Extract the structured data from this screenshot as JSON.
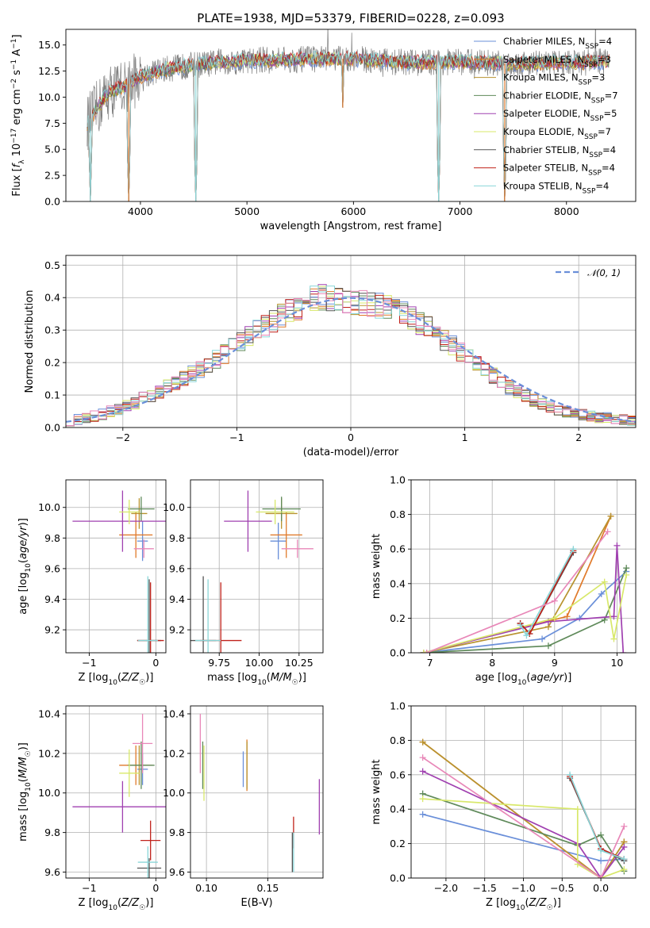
{
  "figure_title": "PLATE=1938, MJD=53379, FIBERID=0228, z=0.093",
  "model_colors": [
    "#6a8fd9",
    "#e07a2a",
    "#b8932f",
    "#5f8a5a",
    "#a040b0",
    "#d8e86a",
    "#555555",
    "#c0221a",
    "#8ad6d8"
  ],
  "pink_color": "#e887b8",
  "chart_data": [
    {
      "id": "spectrum",
      "type": "line",
      "title": "PLATE=1938, MJD=53379, FIBERID=0228, z=0.093",
      "xlabel": "wavelength [Angstrom, rest frame]",
      "ylabel": "Flux [f_λ 10^-17 erg cm^-2 s^-1 A^-1]",
      "xlim": [
        3300,
        8650
      ],
      "ylim": [
        0,
        16.5
      ],
      "xticks": [
        4000,
        5000,
        6000,
        7000,
        8000
      ],
      "yticks": [
        0.0,
        2.5,
        5.0,
        7.5,
        10.0,
        12.5,
        15.0
      ],
      "legend_position": "right",
      "legend": [
        {
          "text": "Chabrier MILES, N",
          "sub": "SSP",
          "tail": "=4",
          "color": "#6a8fd9"
        },
        {
          "text": "Salpeter MILES, N",
          "sub": "SSP",
          "tail": "=3",
          "color": "#e07a2a"
        },
        {
          "text": "Kroupa MILES, N",
          "sub": "SSP",
          "tail": "=3",
          "color": "#b8932f"
        },
        {
          "text": "Chabrier ELODIE, N",
          "sub": "SSP",
          "tail": "=7",
          "color": "#5f8a5a"
        },
        {
          "text": "Salpeter ELODIE, N",
          "sub": "SSP",
          "tail": "=5",
          "color": "#a040b0"
        },
        {
          "text": "Kroupa ELODIE, N",
          "sub": "SSP",
          "tail": "=7",
          "color": "#d8e86a"
        },
        {
          "text": "Chabrier STELIB, N",
          "sub": "SSP",
          "tail": "=4",
          "color": "#555555"
        },
        {
          "text": "Salpeter STELIB, N",
          "sub": "SSP",
          "tail": "=4",
          "color": "#c0221a"
        },
        {
          "text": "Kroupa STELIB, N",
          "sub": "SSP",
          "tail": "=4",
          "color": "#8ad6d8"
        }
      ],
      "continuum": [
        [
          3500,
          7.5
        ],
        [
          3700,
          10.5
        ],
        [
          3850,
          11.0
        ],
        [
          4000,
          12.0
        ],
        [
          4200,
          12.6
        ],
        [
          4500,
          13.1
        ],
        [
          5000,
          13.5
        ],
        [
          5500,
          13.6
        ],
        [
          6000,
          13.7
        ],
        [
          6500,
          13.3
        ],
        [
          7000,
          13.4
        ],
        [
          7500,
          13.2
        ],
        [
          8000,
          13.3
        ],
        [
          8400,
          13.4
        ]
      ],
      "absorption_lines": [
        {
          "x": 3530,
          "depth": 0
        },
        {
          "x": 3890,
          "depth": 0
        },
        {
          "x": 4520,
          "depth": 0
        },
        {
          "x": 5900,
          "depth": 9.0
        },
        {
          "x": 6800,
          "depth": 0
        },
        {
          "x": 7420,
          "depth": 0
        }
      ]
    },
    {
      "id": "residuals",
      "type": "histogram",
      "xlabel": "(data-model)/error",
      "ylabel": "Normed distribution",
      "xlim": [
        -2.5,
        2.5
      ],
      "ylim": [
        0,
        0.53
      ],
      "xticks": [
        -2,
        -1,
        0,
        1,
        2
      ],
      "yticks": [
        0.0,
        0.1,
        0.2,
        0.3,
        0.4,
        0.5
      ],
      "legend_position": "top-right",
      "legend": [
        {
          "text": "𝒩(0, 1)",
          "color": "#6a8fd9"
        }
      ],
      "bin_width": 0.1,
      "envelope_y": [
        0.02,
        0.025,
        0.03,
        0.035,
        0.04,
        0.05,
        0.055,
        0.065,
        0.075,
        0.09,
        0.1,
        0.11,
        0.125,
        0.14,
        0.15,
        0.165,
        0.18,
        0.19,
        0.21,
        0.225,
        0.245,
        0.26,
        0.28,
        0.3,
        0.31,
        0.33,
        0.345,
        0.36,
        0.37,
        0.385,
        0.395,
        0.4,
        0.395,
        0.39,
        0.39,
        0.385,
        0.385,
        0.38,
        0.375,
        0.37,
        0.36,
        0.35,
        0.34,
        0.32,
        0.31,
        0.29,
        0.27,
        0.255,
        0.235,
        0.215,
        0.195,
        0.175,
        0.16,
        0.14,
        0.125,
        0.11,
        0.095,
        0.085,
        0.075,
        0.065,
        0.055,
        0.05,
        0.045,
        0.04,
        0.035,
        0.03,
        0.03,
        0.025,
        0.025,
        0.02
      ]
    },
    {
      "id": "age-vs-Z",
      "type": "errorbar",
      "xlabel": "Z [log10(Z/Z☉)]",
      "ylabel": "age  [log10(age/yr)]",
      "xlim": [
        -1.35,
        0.15
      ],
      "ylim": [
        9.05,
        10.18
      ],
      "xticks": [
        -1,
        0
      ],
      "yticks": [
        9.2,
        9.4,
        9.6,
        9.8,
        10.0
      ],
      "points": [
        {
          "x": -0.2,
          "xerr": 0.08,
          "y": 9.78,
          "yerr": 0.13,
          "color": "#6a8fd9"
        },
        {
          "x": -0.3,
          "xerr": 0.25,
          "y": 9.82,
          "yerr": 0.15,
          "color": "#e07a2a"
        },
        {
          "x": -0.25,
          "xerr": 0.12,
          "y": 9.96,
          "yerr": 0.1,
          "color": "#b8932f"
        },
        {
          "x": -0.22,
          "xerr": 0.2,
          "y": 9.99,
          "yerr": 0.08,
          "color": "#5f8a5a"
        },
        {
          "x": -0.5,
          "xerr": 0.75,
          "y": 9.91,
          "yerr": 0.2,
          "color": "#a040b0"
        },
        {
          "x": -0.4,
          "xerr": 0.15,
          "y": 9.97,
          "yerr": 0.08,
          "color": "#d8e86a"
        },
        {
          "x": -0.1,
          "xerr": 0.18,
          "y": 9.13,
          "yerr": 0.4,
          "color": "#555555"
        },
        {
          "x": -0.08,
          "xerr": 0.2,
          "y": 9.13,
          "yerr": 0.38,
          "color": "#c0221a"
        },
        {
          "x": -0.12,
          "xerr": 0.15,
          "y": 9.13,
          "yerr": 0.42,
          "color": "#8ad6d8"
        },
        {
          "x": -0.18,
          "xerr": 0.15,
          "y": 9.73,
          "yerr": 0.06,
          "color": "#e887b8"
        }
      ]
    },
    {
      "id": "age-vs-mass",
      "type": "errorbar",
      "xlabel": "mass [log10(M/M☉)]",
      "ylabel": "",
      "xlim": [
        9.57,
        10.4
      ],
      "ylim": [
        9.05,
        10.18
      ],
      "xticks": [
        9.75,
        10.0,
        10.25
      ],
      "yticks": [
        9.2,
        9.4,
        9.6,
        9.8,
        10.0
      ],
      "points": [
        {
          "x": 10.12,
          "xerr": 0.05,
          "y": 9.78,
          "yerr": 0.12,
          "color": "#6a8fd9"
        },
        {
          "x": 10.17,
          "xerr": 0.1,
          "y": 9.82,
          "yerr": 0.15,
          "color": "#e07a2a"
        },
        {
          "x": 10.14,
          "xerr": 0.1,
          "y": 9.96,
          "yerr": 0.1,
          "color": "#b8932f"
        },
        {
          "x": 10.14,
          "xerr": 0.12,
          "y": 9.99,
          "yerr": 0.08,
          "color": "#5f8a5a"
        },
        {
          "x": 9.93,
          "xerr": 0.15,
          "y": 9.91,
          "yerr": 0.2,
          "color": "#a040b0"
        },
        {
          "x": 10.1,
          "xerr": 0.12,
          "y": 9.97,
          "yerr": 0.08,
          "color": "#d8e86a"
        },
        {
          "x": 9.65,
          "xerr": 0.08,
          "y": 9.13,
          "yerr": 0.42,
          "color": "#555555"
        },
        {
          "x": 9.76,
          "xerr": 0.13,
          "y": 9.13,
          "yerr": 0.38,
          "color": "#c0221a"
        },
        {
          "x": 9.68,
          "xerr": 0.08,
          "y": 9.13,
          "yerr": 0.4,
          "color": "#8ad6d8"
        },
        {
          "x": 10.24,
          "xerr": 0.1,
          "y": 9.73,
          "yerr": 0.06,
          "color": "#e887b8"
        }
      ]
    },
    {
      "id": "weight-vs-age",
      "type": "line",
      "xlabel": "age  [log10(age/yr)]",
      "ylabel": "mass weight",
      "xlim": [
        6.7,
        10.3
      ],
      "ylim": [
        0,
        1.0
      ],
      "xticks": [
        7,
        8,
        9,
        10
      ],
      "yticks": [
        0.0,
        0.2,
        0.4,
        0.6,
        0.8,
        1.0
      ],
      "series": [
        {
          "color": "#6a8fd9",
          "points": [
            [
              6.9,
              0.0
            ],
            [
              8.8,
              0.08
            ],
            [
              9.4,
              0.2
            ],
            [
              9.75,
              0.34
            ],
            [
              10.15,
              0.47
            ]
          ]
        },
        {
          "color": "#e07a2a",
          "points": [
            [
              6.9,
              0.0
            ],
            [
              9.2,
              0.21
            ],
            [
              9.9,
              0.79
            ]
          ]
        },
        {
          "color": "#b8932f",
          "points": [
            [
              6.9,
              0.0
            ],
            [
              8.9,
              0.15
            ],
            [
              9.9,
              0.79
            ]
          ]
        },
        {
          "color": "#5f8a5a",
          "points": [
            [
              6.9,
              0.0
            ],
            [
              8.9,
              0.04
            ],
            [
              9.8,
              0.19
            ],
            [
              10.15,
              0.49
            ]
          ]
        },
        {
          "color": "#a040b0",
          "points": [
            [
              6.9,
              0.0
            ],
            [
              8.9,
              0.18
            ],
            [
              9.95,
              0.21
            ],
            [
              10.0,
              0.62
            ],
            [
              10.1,
              0.0
            ]
          ]
        },
        {
          "color": "#d8e86a",
          "points": [
            [
              6.9,
              0.0
            ],
            [
              9.0,
              0.2
            ],
            [
              9.8,
              0.41
            ],
            [
              9.95,
              0.08
            ],
            [
              10.15,
              0.45
            ]
          ]
        },
        {
          "color": "#555555",
          "points": [
            [
              8.45,
              0.17
            ],
            [
              8.6,
              0.11
            ],
            [
              9.3,
              0.58
            ]
          ]
        },
        {
          "color": "#c0221a",
          "points": [
            [
              8.45,
              0.17
            ],
            [
              8.6,
              0.11
            ],
            [
              9.3,
              0.59
            ]
          ]
        },
        {
          "color": "#8ad6d8",
          "points": [
            [
              8.45,
              0.16
            ],
            [
              8.55,
              0.1
            ],
            [
              9.3,
              0.6
            ]
          ]
        },
        {
          "color": "#e887b8",
          "points": [
            [
              6.95,
              0.0
            ],
            [
              9.0,
              0.3
            ],
            [
              9.85,
              0.7
            ]
          ]
        }
      ]
    },
    {
      "id": "mass-vs-Z",
      "type": "errorbar",
      "xlabel": "Z [log10(Z/Z☉)]",
      "ylabel": "mass [log10(M/M☉)]",
      "xlim": [
        -1.35,
        0.15
      ],
      "ylim": [
        9.57,
        10.44
      ],
      "xticks": [
        -1,
        0
      ],
      "yticks": [
        9.6,
        9.8,
        10.0,
        10.2,
        10.4
      ],
      "points": [
        {
          "x": -0.2,
          "xerr": 0.08,
          "y": 10.12,
          "yerr": 0.08,
          "color": "#6a8fd9"
        },
        {
          "x": -0.3,
          "xerr": 0.25,
          "y": 10.14,
          "yerr": 0.1,
          "color": "#e07a2a"
        },
        {
          "x": -0.25,
          "xerr": 0.12,
          "y": 10.14,
          "yerr": 0.1,
          "color": "#b8932f"
        },
        {
          "x": -0.22,
          "xerr": 0.2,
          "y": 10.14,
          "yerr": 0.12,
          "color": "#5f8a5a"
        },
        {
          "x": -0.5,
          "xerr": 0.75,
          "y": 9.93,
          "yerr": 0.13,
          "color": "#a040b0"
        },
        {
          "x": -0.4,
          "xerr": 0.15,
          "y": 10.1,
          "yerr": 0.12,
          "color": "#d8e86a"
        },
        {
          "x": -0.1,
          "xerr": 0.18,
          "y": 9.62,
          "yerr": 0.05,
          "color": "#555555"
        },
        {
          "x": -0.08,
          "xerr": 0.15,
          "y": 9.76,
          "yerr": 0.1,
          "color": "#c0221a"
        },
        {
          "x": -0.12,
          "xerr": 0.15,
          "y": 9.65,
          "yerr": 0.08,
          "color": "#8ad6d8"
        },
        {
          "x": -0.2,
          "xerr": 0.15,
          "y": 10.25,
          "yerr": 0.15,
          "color": "#e887b8"
        }
      ]
    },
    {
      "id": "mass-vs-ebv",
      "type": "errorbar",
      "xlabel": "E(B-V)",
      "ylabel": "",
      "xlim": [
        0.087,
        0.195
      ],
      "ylim": [
        9.57,
        10.44
      ],
      "xticks": [
        0.1,
        0.15
      ],
      "yticks": [
        9.6,
        9.8,
        10.0,
        10.2,
        10.4
      ],
      "points": [
        {
          "x": 0.13,
          "xerr": 0,
          "y": 10.12,
          "yerr": 0.09,
          "color": "#6a8fd9"
        },
        {
          "x": 0.133,
          "xerr": 0,
          "y": 10.14,
          "yerr": 0.13,
          "color": "#e07a2a"
        },
        {
          "x": 0.133,
          "xerr": 0,
          "y": 10.14,
          "yerr": 0.12,
          "color": "#b8932f"
        },
        {
          "x": 0.097,
          "xerr": 0,
          "y": 10.14,
          "yerr": 0.12,
          "color": "#5f8a5a"
        },
        {
          "x": 0.192,
          "xerr": 0,
          "y": 9.93,
          "yerr": 0.14,
          "color": "#a040b0"
        },
        {
          "x": 0.098,
          "xerr": 0,
          "y": 10.1,
          "yerr": 0.14,
          "color": "#d8e86a"
        },
        {
          "x": 0.17,
          "xerr": 0,
          "y": 9.7,
          "yerr": 0.1,
          "color": "#555555"
        },
        {
          "x": 0.171,
          "xerr": 0,
          "y": 9.8,
          "yerr": 0.08,
          "color": "#c0221a"
        },
        {
          "x": 0.171,
          "xerr": 0,
          "y": 9.7,
          "yerr": 0.1,
          "color": "#8ad6d8"
        },
        {
          "x": 0.095,
          "xerr": 0,
          "y": 10.25,
          "yerr": 0.15,
          "color": "#e887b8"
        }
      ]
    },
    {
      "id": "weight-vs-Z",
      "type": "line",
      "xlabel": "Z [log10(Z/Z☉)]",
      "ylabel": "mass weight",
      "xlim": [
        -2.45,
        0.45
      ],
      "ylim": [
        0,
        1.0
      ],
      "xticks": [
        -2.0,
        -1.5,
        -1.0,
        -0.5,
        0.0
      ],
      "yticks": [
        0.0,
        0.2,
        0.4,
        0.6,
        0.8,
        1.0
      ],
      "series": [
        {
          "color": "#6a8fd9",
          "points": [
            [
              -2.3,
              0.37
            ],
            [
              0.0,
              0.1
            ],
            [
              0.3,
              0.11
            ]
          ]
        },
        {
          "color": "#e07a2a",
          "points": [
            [
              -2.3,
              0.79
            ],
            [
              0.0,
              0.0
            ],
            [
              0.3,
              0.21
            ]
          ]
        },
        {
          "color": "#b8932f",
          "points": [
            [
              -2.3,
              0.79
            ],
            [
              0.0,
              0.0
            ],
            [
              0.3,
              0.21
            ]
          ]
        },
        {
          "color": "#5f8a5a",
          "points": [
            [
              -2.3,
              0.49
            ],
            [
              -0.3,
              0.19
            ],
            [
              0.0,
              0.25
            ],
            [
              0.3,
              0.04
            ]
          ]
        },
        {
          "color": "#a040b0",
          "points": [
            [
              -2.3,
              0.62
            ],
            [
              -0.3,
              0.2
            ],
            [
              0.0,
              0.0
            ],
            [
              0.3,
              0.18
            ]
          ]
        },
        {
          "color": "#d8e86a",
          "points": [
            [
              -2.3,
              0.46
            ],
            [
              -0.3,
              0.4
            ],
            [
              -0.3,
              0.08
            ],
            [
              0.0,
              0.0
            ],
            [
              0.3,
              0.05
            ]
          ]
        },
        {
          "color": "#555555",
          "points": [
            [
              -0.4,
              0.58
            ],
            [
              0.0,
              0.17
            ],
            [
              0.3,
              0.1
            ]
          ]
        },
        {
          "color": "#c0221a",
          "points": [
            [
              -0.4,
              0.59
            ],
            [
              0.0,
              0.17
            ],
            [
              0.3,
              0.11
            ]
          ]
        },
        {
          "color": "#8ad6d8",
          "points": [
            [
              -0.4,
              0.6
            ],
            [
              0.0,
              0.16
            ],
            [
              0.3,
              0.11
            ]
          ]
        },
        {
          "color": "#e887b8",
          "points": [
            [
              -2.3,
              0.7
            ],
            [
              0.0,
              0.0
            ],
            [
              0.3,
              0.3
            ]
          ]
        }
      ]
    }
  ]
}
